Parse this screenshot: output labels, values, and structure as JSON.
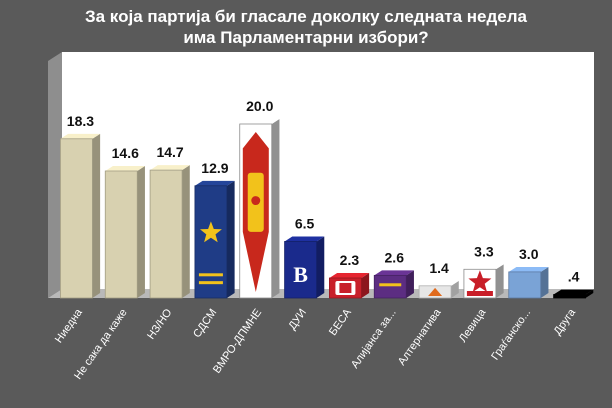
{
  "chart_data": {
    "type": "bar",
    "title": [
      "За која партија би гласале доколку следната  недела",
      "има Парламентарни  избори?"
    ],
    "xlabel": "",
    "ylabel": "",
    "ylim": [
      0,
      20
    ],
    "grid": false,
    "legend": "none",
    "categories": [
      "Ниедна",
      "Не сака да каже",
      "НЗ/НО",
      "СДСМ",
      "ВМРО-ДПМНЕ",
      "ДУИ",
      "БЕСА",
      "Алијанса за...",
      "Алтернатива",
      "Левица",
      "Граѓанско...",
      "Друга"
    ],
    "values": [
      18.3,
      14.6,
      14.7,
      12.9,
      20.0,
      6.5,
      2.3,
      2.6,
      1.4,
      3.3,
      3.0,
      0.4
    ],
    "value_labels": [
      "18.3",
      "14.6",
      "14.7",
      "12.9",
      "20.0",
      "6.5",
      "2.3",
      "2.6",
      "1.4",
      "3.3",
      "3.0",
      ".4"
    ],
    "bar_styles": [
      "plain-beige",
      "plain-beige",
      "plain-beige",
      "logo-sdsm",
      "logo-vmro",
      "logo-dui",
      "logo-besa",
      "logo-alijansa",
      "logo-alternativa",
      "logo-levica",
      "plain-blue",
      "plain-black"
    ],
    "colors": {
      "background": "#5a5a5a",
      "plot_area": "#ffffff",
      "plot_wall_side": "#8e8e8e",
      "floor": "#b9b9b9",
      "beige": "#d8d1b0",
      "sdsm": "#1f3c86",
      "vmro": "#c8281c",
      "dui": "#1a2a8c",
      "besa": "#c8202a",
      "alijansa": "#5c2d82",
      "alternativa": "#e6e6e6",
      "levica": "#c81e28",
      "gragjansko": "#7aa3d6",
      "druga": "#000000",
      "title_text": "#ffffff",
      "category_text": "#ffffff",
      "value_text": "#111111"
    }
  }
}
